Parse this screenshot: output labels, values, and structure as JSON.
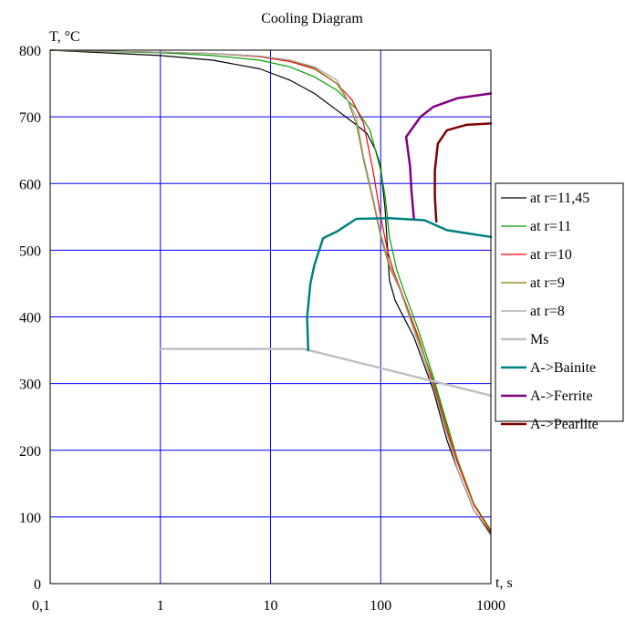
{
  "chart_data": {
    "type": "line",
    "title": "Cooling Diagram",
    "ylabel": "T, °C",
    "xlabel": "t, s",
    "x_scale": "log",
    "xlim": [
      0.1,
      1000
    ],
    "ylim": [
      0,
      800
    ],
    "x_ticks": [
      {
        "value": 0.1,
        "label": "0,1"
      },
      {
        "value": 1,
        "label": "1"
      },
      {
        "value": 10,
        "label": "10"
      },
      {
        "value": 100,
        "label": "100"
      },
      {
        "value": 1000,
        "label": "1000"
      }
    ],
    "y_ticks": [
      {
        "value": 0,
        "label": "0"
      },
      {
        "value": 100,
        "label": "100"
      },
      {
        "value": 200,
        "label": "200"
      },
      {
        "value": 300,
        "label": "300"
      },
      {
        "value": 400,
        "label": "400"
      },
      {
        "value": 500,
        "label": "500"
      },
      {
        "value": 600,
        "label": "600"
      },
      {
        "value": 700,
        "label": "700"
      },
      {
        "value": 800,
        "label": "800"
      }
    ],
    "grid": true,
    "grid_color": "#0000ff",
    "legend_position": "right",
    "series": [
      {
        "name": "at r=11,45",
        "color": "#000000",
        "width": 1.2,
        "points": [
          [
            0.1,
            800
          ],
          [
            1,
            792
          ],
          [
            3,
            785
          ],
          [
            8,
            772
          ],
          [
            15,
            755
          ],
          [
            25,
            735
          ],
          [
            40,
            710
          ],
          [
            60,
            688
          ],
          [
            75,
            675
          ],
          [
            90,
            650
          ],
          [
            100,
            625
          ],
          [
            110,
            560
          ],
          [
            120,
            455
          ],
          [
            135,
            425
          ],
          [
            150,
            410
          ],
          [
            200,
            370
          ],
          [
            300,
            290
          ],
          [
            400,
            215
          ],
          [
            500,
            170
          ],
          [
            700,
            110
          ],
          [
            1000,
            75
          ]
        ]
      },
      {
        "name": "at r=11",
        "color": "#00a000",
        "width": 1.2,
        "points": [
          [
            0.1,
            800
          ],
          [
            1,
            796
          ],
          [
            3,
            792
          ],
          [
            8,
            785
          ],
          [
            15,
            775
          ],
          [
            25,
            760
          ],
          [
            40,
            740
          ],
          [
            60,
            712
          ],
          [
            80,
            680
          ],
          [
            100,
            620
          ],
          [
            110,
            580
          ],
          [
            120,
            520
          ],
          [
            140,
            470
          ],
          [
            170,
            430
          ],
          [
            220,
            380
          ],
          [
            300,
            310
          ],
          [
            400,
            240
          ],
          [
            500,
            185
          ],
          [
            700,
            120
          ],
          [
            1000,
            80
          ]
        ]
      },
      {
        "name": "at r=10",
        "color": "#ff0000",
        "width": 1.2,
        "points": [
          [
            0.1,
            800
          ],
          [
            1,
            797
          ],
          [
            3,
            795
          ],
          [
            8,
            790
          ],
          [
            15,
            783
          ],
          [
            25,
            772
          ],
          [
            40,
            750
          ],
          [
            55,
            725
          ],
          [
            70,
            690
          ],
          [
            85,
            620
          ],
          [
            100,
            550
          ],
          [
            115,
            500
          ],
          [
            130,
            470
          ],
          [
            160,
            430
          ],
          [
            220,
            370
          ],
          [
            300,
            300
          ],
          [
            400,
            230
          ],
          [
            500,
            180
          ],
          [
            700,
            118
          ],
          [
            1000,
            78
          ]
        ]
      },
      {
        "name": "at r=9",
        "color": "#808000",
        "width": 1.2,
        "points": [
          [
            0.1,
            800
          ],
          [
            1,
            797
          ],
          [
            3,
            795
          ],
          [
            8,
            791
          ],
          [
            15,
            785
          ],
          [
            25,
            773
          ],
          [
            40,
            750
          ],
          [
            50,
            725
          ],
          [
            60,
            690
          ],
          [
            70,
            635
          ],
          [
            85,
            575
          ],
          [
            100,
            520
          ],
          [
            120,
            475
          ],
          [
            150,
            440
          ],
          [
            200,
            385
          ],
          [
            300,
            305
          ],
          [
            400,
            235
          ],
          [
            500,
            185
          ],
          [
            700,
            120
          ],
          [
            1000,
            80
          ]
        ]
      },
      {
        "name": "at r=8",
        "color": "#a0a0a0",
        "width": 1.2,
        "points": [
          [
            0.1,
            800
          ],
          [
            1,
            797
          ],
          [
            3,
            795
          ],
          [
            8,
            791
          ],
          [
            15,
            785
          ],
          [
            25,
            775
          ],
          [
            40,
            755
          ],
          [
            50,
            725
          ],
          [
            60,
            700
          ],
          [
            70,
            640
          ],
          [
            85,
            580
          ],
          [
            100,
            525
          ],
          [
            120,
            480
          ],
          [
            150,
            440
          ],
          [
            200,
            380
          ],
          [
            300,
            295
          ],
          [
            400,
            225
          ],
          [
            500,
            170
          ],
          [
            700,
            110
          ],
          [
            1000,
            72
          ]
        ]
      },
      {
        "name": "Ms",
        "color": "#c0c0c0",
        "width": 2.5,
        "points": [
          [
            1,
            352
          ],
          [
            20,
            352
          ],
          [
            1000,
            282
          ]
        ]
      },
      {
        "name": "A->Bainite",
        "color": "#008080",
        "width": 2.5,
        "points": [
          [
            22,
            350
          ],
          [
            21.5,
            400
          ],
          [
            23,
            450
          ],
          [
            25,
            478
          ],
          [
            30,
            518
          ],
          [
            40,
            528
          ],
          [
            60,
            547
          ],
          [
            120,
            548
          ],
          [
            250,
            545
          ],
          [
            400,
            530
          ],
          [
            1000,
            520
          ]
        ]
      },
      {
        "name": "A->Ferrite",
        "color": "#800080",
        "width": 2.5,
        "points": [
          [
            200,
            548
          ],
          [
            190,
            590
          ],
          [
            185,
            625
          ],
          [
            170,
            670
          ],
          [
            230,
            700
          ],
          [
            300,
            715
          ],
          [
            500,
            728
          ],
          [
            1000,
            735
          ]
        ]
      },
      {
        "name": "A->Pearlite",
        "color": "#800000",
        "width": 2.5,
        "points": [
          [
            320,
            543
          ],
          [
            310,
            580
          ],
          [
            310,
            620
          ],
          [
            330,
            660
          ],
          [
            400,
            680
          ],
          [
            600,
            688
          ],
          [
            1000,
            690
          ]
        ]
      }
    ]
  }
}
